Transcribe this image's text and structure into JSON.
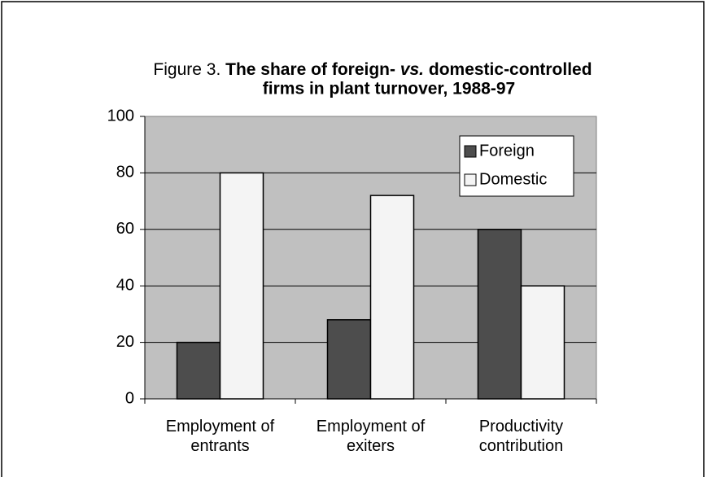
{
  "chart_data": {
    "type": "bar",
    "title": {
      "prefix": "Figure 3.",
      "line1": [
        "The share of foreign-",
        "vs.",
        "domestic-controlled"
      ],
      "line2": "firms in plant turnover, 1988-97"
    },
    "categories": [
      "Employment of entrants",
      "Employment of exiters",
      "Productivity contribution"
    ],
    "series": [
      {
        "name": "Foreign",
        "color": "#4d4d4d",
        "values": [
          20,
          28,
          60
        ]
      },
      {
        "name": "Domestic",
        "color": "#f4f4f4",
        "values": [
          80,
          72,
          40
        ]
      }
    ],
    "ylim": [
      0,
      100
    ],
    "yticks": [
      0,
      20,
      40,
      60,
      80,
      100
    ],
    "grid": true,
    "legend": "upper right",
    "plot_background": "#c0c0c0"
  }
}
